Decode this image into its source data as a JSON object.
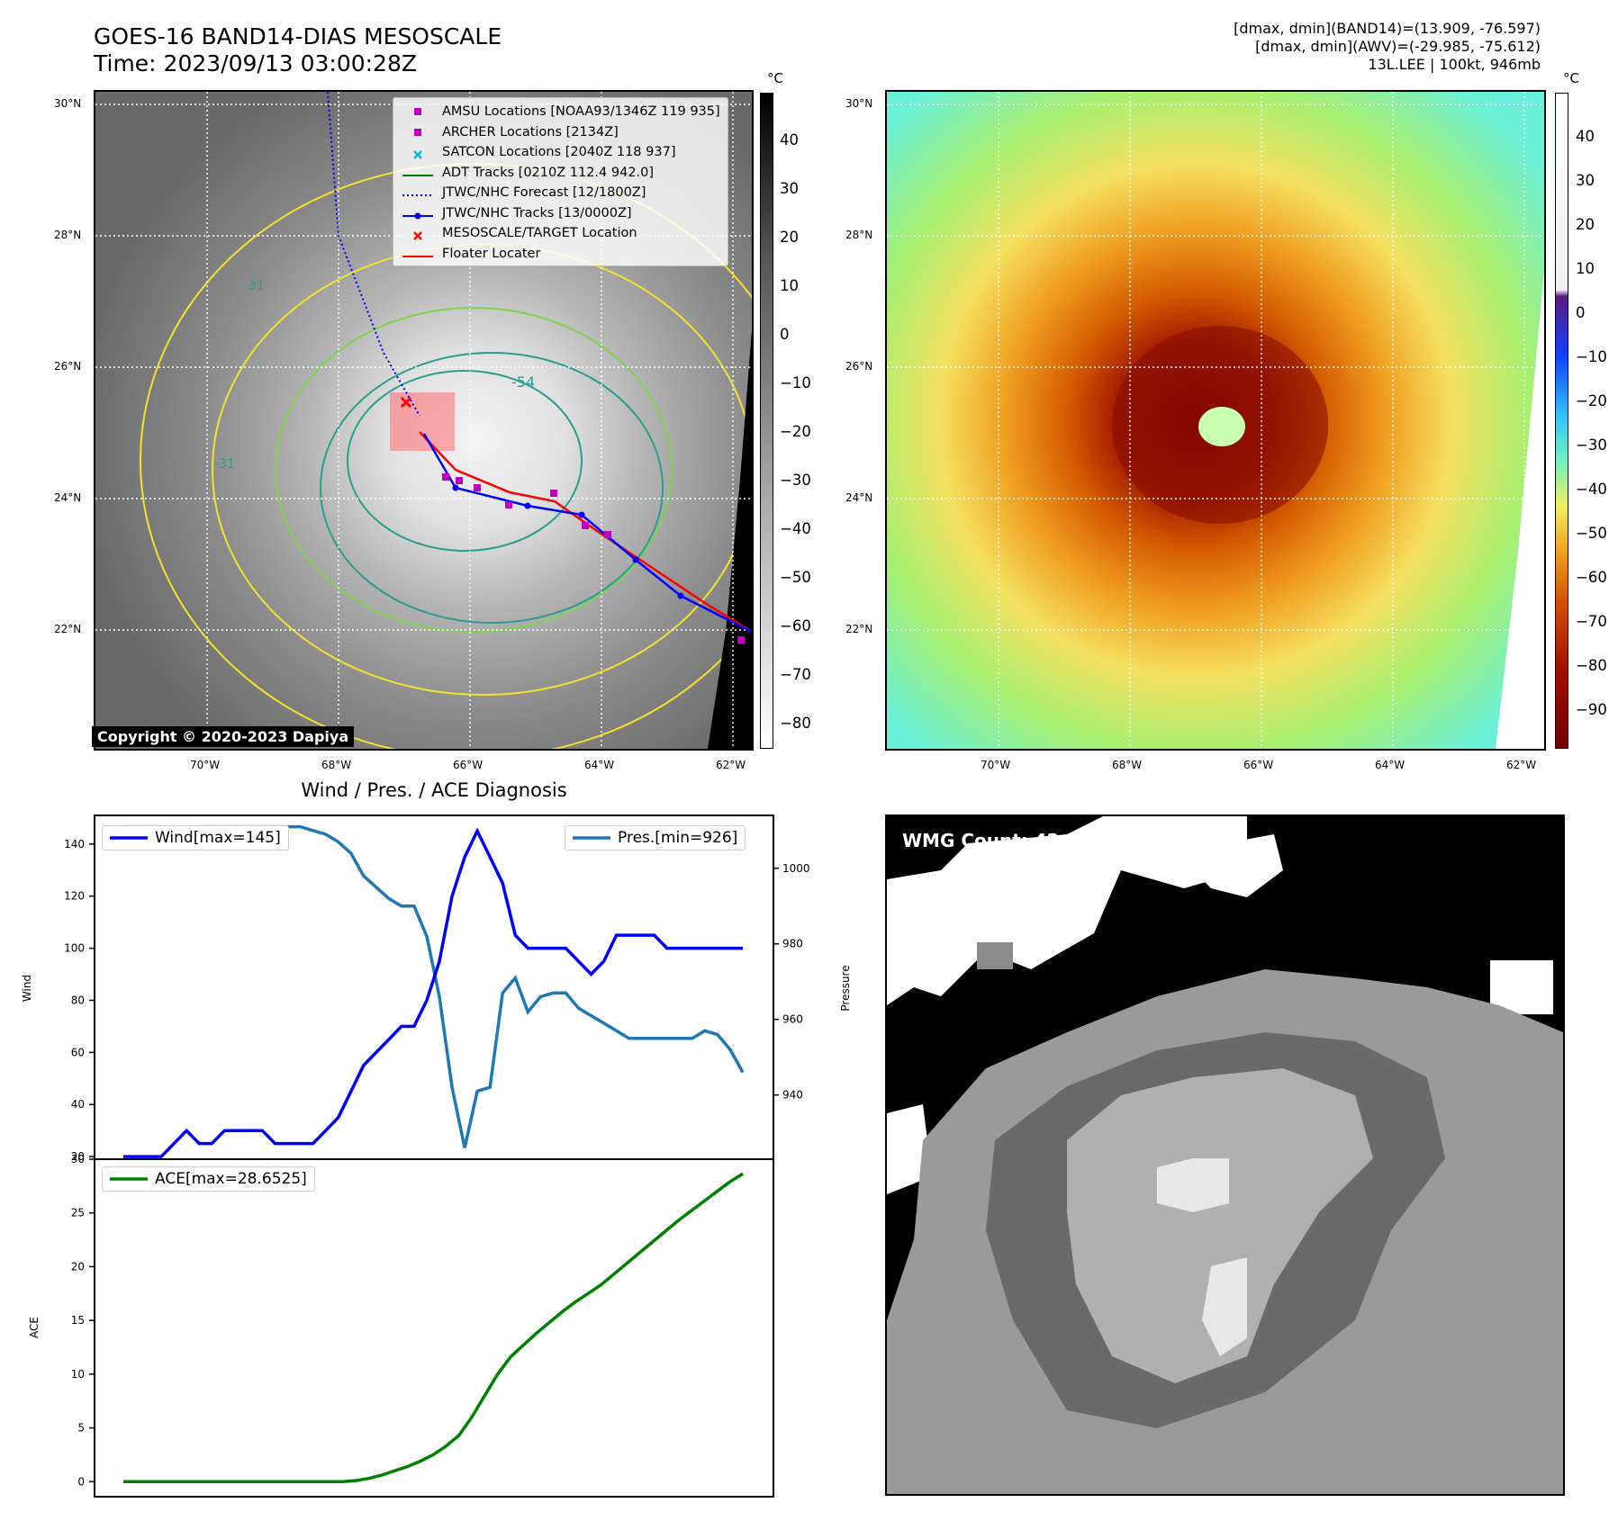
{
  "header": {
    "title_line1": "GOES-16 BAND14-DIAS MESOSCALE",
    "title_line2": "Time: 2023/09/13 03:00:28Z",
    "right_line1": "[dmax, dmin](BAND14)=(13.909, -76.597)",
    "right_line2": "[dmax, dmin](AWV)=(-29.985, -75.612)",
    "right_line3": "13L.LEE | 100kt, 946mb"
  },
  "maps": {
    "lat_labels": [
      "30°N",
      "28°N",
      "26°N",
      "24°N",
      "22°N"
    ],
    "lon_labels": [
      "70°W",
      "68°W",
      "66°W",
      "64°W",
      "62°W"
    ],
    "unit": "°C",
    "copyright": "Copyright © 2020-2023 Dapiya",
    "contour_labels": [
      "-54",
      "-31",
      "-31"
    ]
  },
  "legend": {
    "items": [
      {
        "label": "AMSU Locations [NOAA93/1346Z 119 935]",
        "symbol": "square",
        "color": "#c000c0"
      },
      {
        "label": "ARCHER Locations [2134Z]",
        "symbol": "square",
        "color": "#c000c0"
      },
      {
        "label": "SATCON Locations [2040Z 118 937]",
        "symbol": "x",
        "color": "#00bcd4"
      },
      {
        "label": "ADT Tracks [0210Z 112.4 942.0]",
        "symbol": "line",
        "color": "#008000"
      },
      {
        "label": "JTWC/NHC Forecast [12/1800Z]",
        "symbol": "dotted",
        "color": "#0000ff"
      },
      {
        "label": "JTWC/NHC Tracks [13/0000Z]",
        "symbol": "line-dot",
        "color": "#0000ff"
      },
      {
        "label": "MESOSCALE/TARGET Location",
        "symbol": "x",
        "color": "#ff0000"
      },
      {
        "label": "Floater Locater",
        "symbol": "line",
        "color": "#ff0000"
      }
    ]
  },
  "colorbar_gray": {
    "ticks": [
      "40",
      "30",
      "20",
      "10",
      "0",
      "−10",
      "−20",
      "−30",
      "−40",
      "−50",
      "−60",
      "−70",
      "−80"
    ]
  },
  "colorbar_color": {
    "ticks": [
      "40",
      "30",
      "20",
      "10",
      "0",
      "−10",
      "−20",
      "−30",
      "−40",
      "−50",
      "−60",
      "−70",
      "−80",
      "−90"
    ]
  },
  "wmg": {
    "label": "WMG Count: 42"
  },
  "chart_data": [
    {
      "type": "line",
      "title": "Wind / Pres. / ACE Diagnosis",
      "ylabel": "Wind",
      "y2label": "Pressure",
      "ylim": [
        19,
        151
      ],
      "y2lim": [
        923,
        1014
      ],
      "yticks": [
        20,
        40,
        60,
        80,
        100,
        120,
        140
      ],
      "y2ticks": [
        940,
        960,
        980,
        1000
      ],
      "series": [
        {
          "name": "Wind[max=145]",
          "axis": "left",
          "color": "#0000ff",
          "values": [
            20,
            20,
            20,
            20,
            25,
            30,
            25,
            25,
            30,
            30,
            30,
            30,
            25,
            25,
            25,
            25,
            30,
            35,
            45,
            55,
            60,
            65,
            70,
            70,
            80,
            95,
            120,
            135,
            145,
            135,
            125,
            105,
            100,
            100,
            100,
            100,
            95,
            90,
            95,
            105,
            105,
            105,
            105,
            100,
            100,
            100,
            100,
            100,
            100,
            100
          ]
        },
        {
          "name": "Pres.[min=926]",
          "axis": "right",
          "color": "#1f77b4",
          "values": [
            1011,
            1011,
            1011,
            1011,
            1010,
            1010,
            1011,
            1011,
            1011,
            1011,
            1011,
            1011,
            1011,
            1011,
            1011,
            1010,
            1009,
            1007,
            1004,
            998,
            995,
            992,
            990,
            990,
            982,
            966,
            942,
            926,
            941,
            942,
            967,
            971,
            962,
            966,
            967,
            967,
            963,
            961,
            959,
            957,
            955,
            955,
            955,
            955,
            955,
            955,
            957,
            956,
            952,
            946
          ]
        }
      ]
    },
    {
      "type": "line",
      "ylabel": "ACE",
      "ylim": [
        -1.4,
        30
      ],
      "yticks": [
        0,
        5,
        10,
        15,
        20,
        25,
        30
      ],
      "series": [
        {
          "name": "ACE[max=28.6525]",
          "color": "#008000",
          "values": [
            0,
            0,
            0,
            0,
            0,
            0,
            0,
            0,
            0,
            0,
            0,
            0,
            0,
            0,
            0,
            0,
            0,
            0,
            0.1,
            0.3,
            0.6,
            1,
            1.4,
            1.9,
            2.5,
            3.3,
            4.3,
            6,
            8,
            10,
            11.6,
            12.7,
            13.8,
            14.8,
            15.8,
            16.7,
            17.5,
            18.3,
            19.3,
            20.3,
            21.3,
            22.3,
            23.3,
            24.3,
            25.2,
            26.1,
            27,
            27.9,
            28.6525
          ]
        }
      ]
    }
  ]
}
